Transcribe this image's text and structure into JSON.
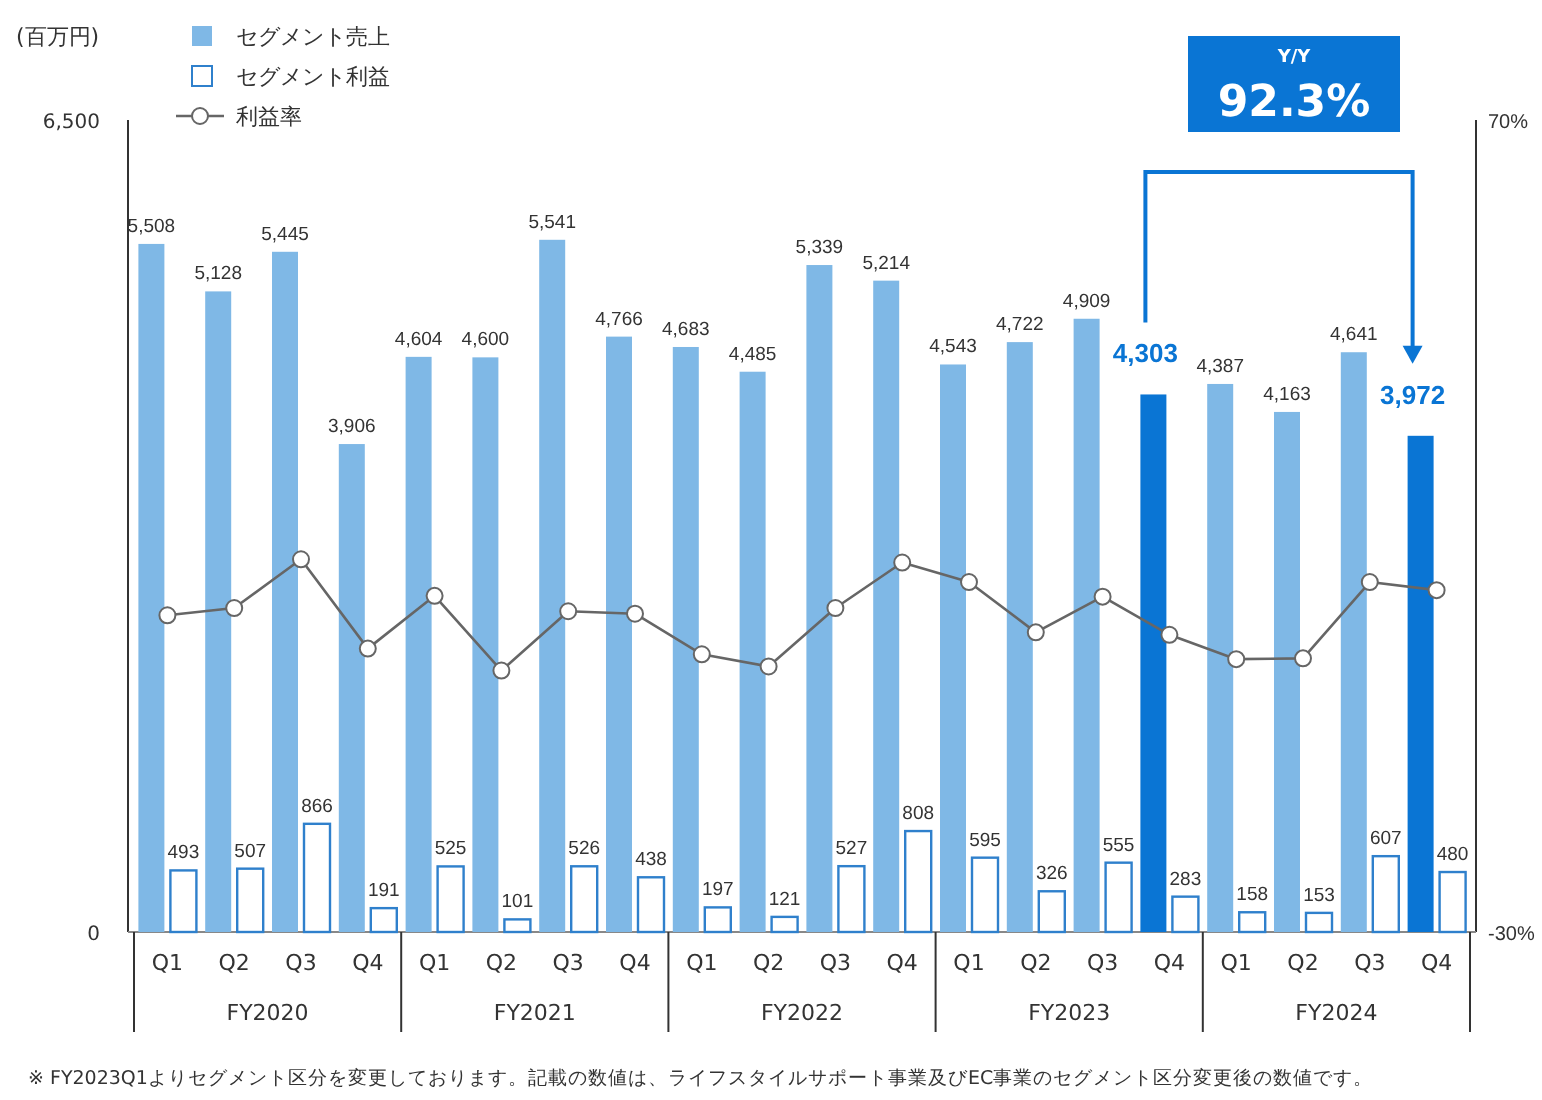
{
  "chart_data": {
    "type": "bar",
    "ylabel": "(百万円)",
    "categories": [
      "Q1",
      "Q2",
      "Q3",
      "Q4",
      "Q1",
      "Q2",
      "Q3",
      "Q4",
      "Q1",
      "Q2",
      "Q3",
      "Q4",
      "Q1",
      "Q2",
      "Q3",
      "Q4",
      "Q1",
      "Q2",
      "Q3",
      "Q4"
    ],
    "series": [
      {
        "name": "セグメント売上",
        "color": "#7fb8e6",
        "colors": [
          "#7fb8e6",
          "#7fb8e6",
          "#7fb8e6",
          "#7fb8e6",
          "#7fb8e6",
          "#7fb8e6",
          "#7fb8e6",
          "#7fb8e6",
          "#7fb8e6",
          "#7fb8e6",
          "#7fb8e6",
          "#7fb8e6",
          "#7fb8e6",
          "#7fb8e6",
          "#7fb8e6",
          "#0a75d4",
          "#7fb8e6",
          "#7fb8e6",
          "#7fb8e6",
          "#0a75d4"
        ],
        "values": [
          5508,
          5128,
          5445,
          3906,
          4604,
          4600,
          5541,
          4766,
          4683,
          4485,
          5339,
          5214,
          4543,
          4722,
          4909,
          4303,
          4387,
          4163,
          4641,
          3972
        ],
        "value_labels": [
          "5,508",
          "5,128",
          "5,445",
          "3,906",
          "4,604",
          "4,600",
          "5,541",
          "4,766",
          "4,683",
          "4,485",
          "5,339",
          "5,214",
          "4,543",
          "4,722",
          "4,909",
          "4,303",
          "4,387",
          "4,163",
          "4,641",
          "3,972"
        ]
      },
      {
        "name": "セグメント利益",
        "color": "#2f80cc",
        "values": [
          493,
          507,
          866,
          191,
          525,
          101,
          526,
          438,
          197,
          121,
          527,
          808,
          595,
          326,
          555,
          283,
          158,
          153,
          607,
          480
        ],
        "value_labels": [
          "493",
          "507",
          "866",
          "191",
          "525",
          "101",
          "526",
          "438",
          "197",
          "121",
          "527",
          "808",
          "595",
          "326",
          "555",
          "283",
          "158",
          "153",
          "607",
          "480"
        ]
      },
      {
        "name": "利益率",
        "type": "line",
        "axis": "y2",
        "color": "#666666",
        "marker": "circle",
        "values": [
          9.0,
          9.9,
          15.9,
          4.9,
          11.4,
          2.2,
          9.5,
          9.2,
          4.2,
          2.7,
          9.9,
          15.5,
          13.1,
          6.9,
          11.3,
          6.6,
          3.6,
          3.7,
          13.1,
          12.1
        ]
      }
    ],
    "ylim": [
      0,
      6500
    ],
    "yticks": [
      0,
      {
        "value": 6500,
        "label": "6,500"
      }
    ],
    "y2lim": [
      -30,
      70
    ],
    "y2ticks": [
      {
        "value": -30,
        "label": "-30%"
      },
      {
        "value": 70,
        "label": "70%"
      }
    ],
    "grid": false,
    "legend": "top left",
    "annotations": [
      "Y/Y",
      "92.3%",
      "※ FY2023Q1よりセグメント区分を変更しております。記載の数値は、ライフスタイルサポート事業及びEC事業のセグメント区分変更後の数値です。",
      "FY2020",
      "FY2021",
      "FY2022",
      "FY2023",
      "FY2024"
    ]
  }
}
